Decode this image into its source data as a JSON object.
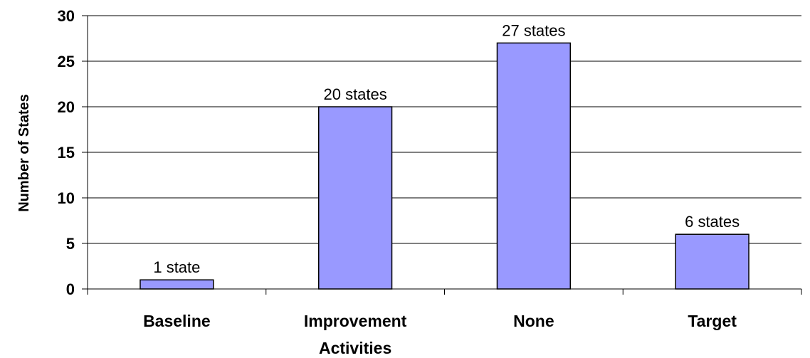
{
  "chart_data": {
    "type": "bar",
    "title": "",
    "xlabel": "",
    "ylabel": "Number of States",
    "categories": [
      "Baseline",
      "Improvement Activities",
      "None",
      "Target"
    ],
    "category_lines": [
      [
        "Baseline"
      ],
      [
        "Improvement",
        "Activities"
      ],
      [
        "None"
      ],
      [
        "Target"
      ]
    ],
    "values": [
      1,
      20,
      27,
      6
    ],
    "data_labels": [
      "1 state",
      "20 states",
      "27 states",
      "6 states"
    ],
    "ylim": [
      0,
      30
    ],
    "yticks": [
      0,
      5,
      10,
      15,
      20,
      25,
      30
    ],
    "grid": true,
    "legend": "none",
    "bar_color": "#9999ff",
    "bar_edge_color": "#000000"
  }
}
